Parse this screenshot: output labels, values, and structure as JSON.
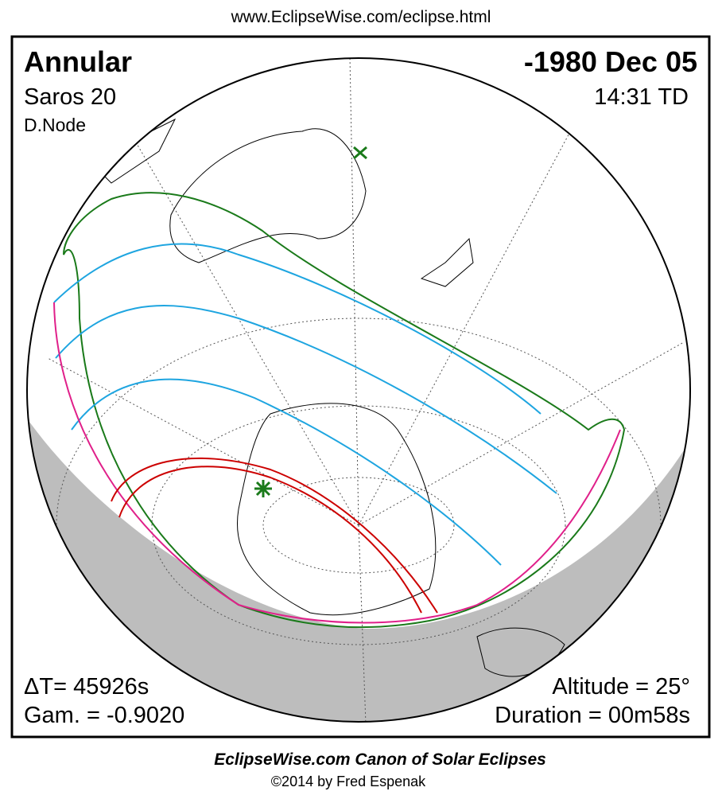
{
  "header": {
    "url": "www.EclipseWise.com/eclipse.html"
  },
  "eclipse": {
    "type": "Annular",
    "saros": "Saros  20",
    "node": "D.Node",
    "date": "-1980 Dec 05",
    "time": "14:31 TD",
    "delta_t": "ΔT=  45926s",
    "gamma": "Gam. = -0.9020",
    "altitude": "Altitude = 25°",
    "duration": "Duration = 00m58s"
  },
  "footer": {
    "title": "EclipseWise.com Canon of Solar Eclipses",
    "credit": "©2014 by Fred Espenak"
  }
}
